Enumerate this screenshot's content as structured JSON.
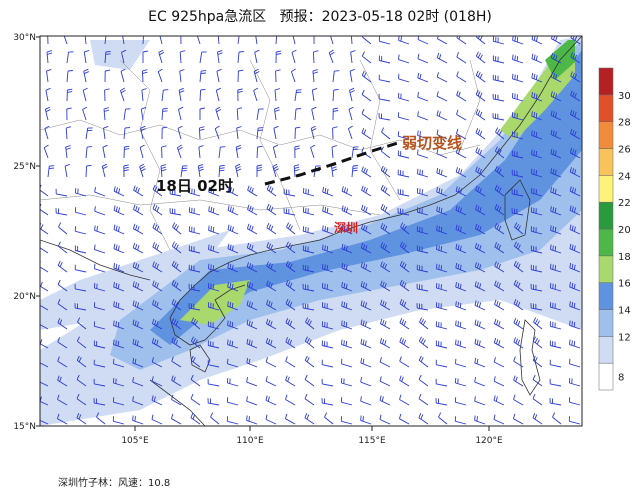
{
  "title": "EC 925hpa急流区   预报：2023-05-18 02时 (018H)",
  "annotations": {
    "shear_line_label": "弱切变线",
    "time_label": "18日 02时",
    "city_label": "深圳"
  },
  "lat_labels": [
    "30°N",
    "25°N",
    "20°N",
    "15°N"
  ],
  "lon_labels": [
    "105°E",
    "110°E",
    "115°E",
    "120°E"
  ],
  "colorbar": {
    "ticks": [
      "30",
      "28",
      "26",
      "24",
      "22",
      "20",
      "18",
      "16",
      "14",
      "12",
      "8"
    ],
    "colors": [
      "#ffffff",
      "#cfdcf3",
      "#9fc0ec",
      "#5f93e0",
      "#a9d86d",
      "#4db848",
      "#2b9a3c",
      "#fff27a",
      "#f7c35a",
      "#f08c3c",
      "#e0502b",
      "#b52024"
    ]
  },
  "footer": "深圳竹子林：风速：10.8"
}
